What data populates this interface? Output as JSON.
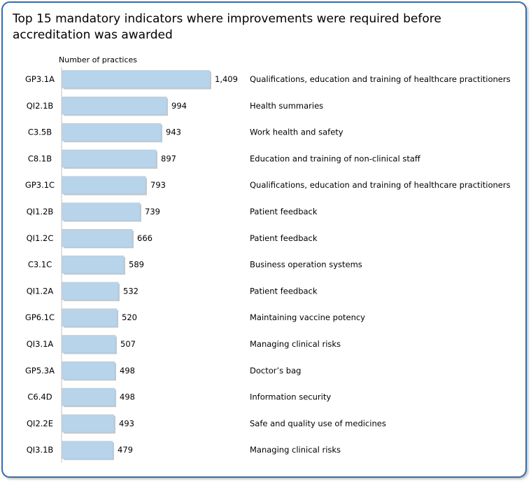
{
  "chart_data": {
    "type": "bar",
    "orientation": "horizontal",
    "title": "Top 15 mandatory indicators where improvements were required before accreditation was awarded",
    "xlabel": "Number of practices",
    "categories": [
      "GP3.1A",
      "QI2.1B",
      "C3.5B",
      "C8.1B",
      "GP3.1C",
      "QI1.2B",
      "QI1.2C",
      "C3.1C",
      "QI1.2A",
      "GP6.1C",
      "QI3.1A",
      "GP5.3A",
      "C6.4D",
      "QI2.2E",
      "QI3.1B"
    ],
    "values": [
      1409,
      994,
      943,
      897,
      793,
      739,
      666,
      589,
      532,
      520,
      507,
      498,
      498,
      493,
      479
    ],
    "value_labels": [
      "1,409",
      "994",
      "943",
      "897",
      "793",
      "739",
      "666",
      "589",
      "532",
      "520",
      "507",
      "498",
      "498",
      "493",
      "479"
    ],
    "descriptions": [
      "Qualifications, education and training of healthcare practitioners",
      "Health summaries",
      "Work health and safety",
      "Education and training of non-clinical staff",
      "Qualifications, education and training of healthcare practitioners",
      "Patient feedback",
      "Patient feedback",
      "Business operation systems",
      "Patient feedback",
      "Maintaining vaccine potency",
      "Managing clinical risks",
      "Doctor’s bag",
      "Information security",
      "Safe and quality use of medicines",
      "Managing clinical risks"
    ],
    "xlim": [
      0,
      1409
    ],
    "grid": false,
    "legend": "none",
    "bar_color": "#b8d4ea"
  }
}
